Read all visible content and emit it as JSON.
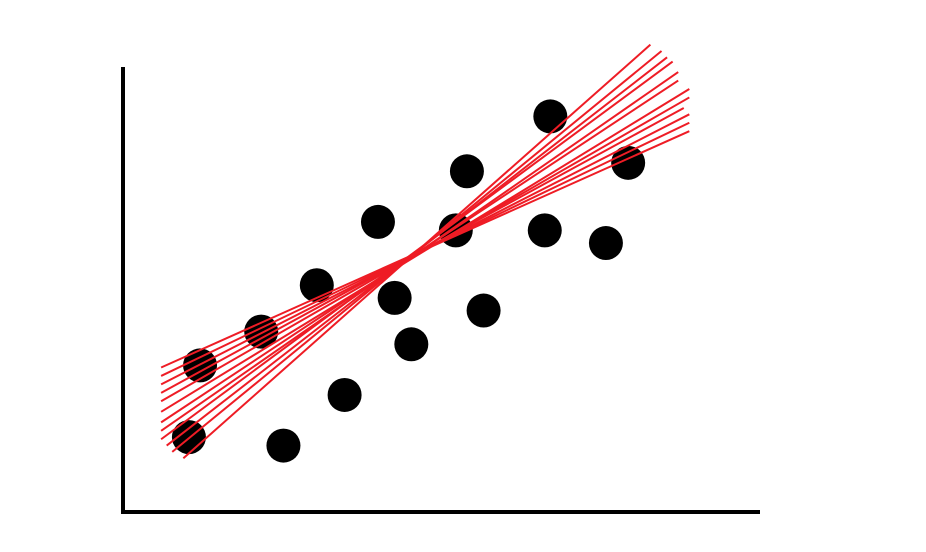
{
  "chart_data": {
    "type": "scatter",
    "title": "",
    "xlabel": "",
    "ylabel": "",
    "axis_ticks": false,
    "grid": false,
    "colors": {
      "points": "#000000",
      "fit_lines": "#ee1c25",
      "axes": "#000000",
      "background": "#ffffff"
    },
    "xlim": [
      0,
      10
    ],
    "ylim": [
      0,
      10
    ],
    "points": [
      {
        "x": 0.7,
        "y": 1.3
      },
      {
        "x": 0.9,
        "y": 3.0
      },
      {
        "x": 2.0,
        "y": 3.8
      },
      {
        "x": 2.4,
        "y": 1.1
      },
      {
        "x": 3.0,
        "y": 4.9
      },
      {
        "x": 3.5,
        "y": 2.3
      },
      {
        "x": 4.1,
        "y": 6.4
      },
      {
        "x": 4.4,
        "y": 4.6
      },
      {
        "x": 4.7,
        "y": 3.5
      },
      {
        "x": 5.5,
        "y": 6.2
      },
      {
        "x": 5.7,
        "y": 7.6
      },
      {
        "x": 6.0,
        "y": 4.3
      },
      {
        "x": 7.1,
        "y": 6.2
      },
      {
        "x": 7.2,
        "y": 8.9
      },
      {
        "x": 8.2,
        "y": 5.9
      },
      {
        "x": 8.6,
        "y": 7.8
      }
    ],
    "fit_lines": [
      {
        "x1": 0.2,
        "y1": 1.65,
        "x2": 9.5,
        "y2": 9.75
      },
      {
        "x1": 0.2,
        "y1": 1.45,
        "x2": 9.5,
        "y2": 9.95
      },
      {
        "x1": 0.2,
        "y1": 1.25,
        "x2": 9.4,
        "y2": 10.2
      },
      {
        "x1": 0.3,
        "y1": 1.1,
        "x2": 9.3,
        "y2": 10.3
      },
      {
        "x1": 0.4,
        "y1": 0.95,
        "x2": 9.2,
        "y2": 10.45
      },
      {
        "x1": 0.6,
        "y1": 0.8,
        "x2": 9.0,
        "y2": 10.6
      },
      {
        "x1": 0.2,
        "y1": 1.9,
        "x2": 9.7,
        "y2": 9.55
      },
      {
        "x1": 0.2,
        "y1": 2.15,
        "x2": 9.7,
        "y2": 9.35
      },
      {
        "x1": 0.2,
        "y1": 2.35,
        "x2": 9.6,
        "y2": 9.1
      },
      {
        "x1": 0.2,
        "y1": 2.55,
        "x2": 9.7,
        "y2": 8.95
      },
      {
        "x1": 0.2,
        "y1": 2.75,
        "x2": 9.7,
        "y2": 8.75
      },
      {
        "x1": 0.2,
        "y1": 2.95,
        "x2": 9.7,
        "y2": 8.55
      }
    ]
  }
}
